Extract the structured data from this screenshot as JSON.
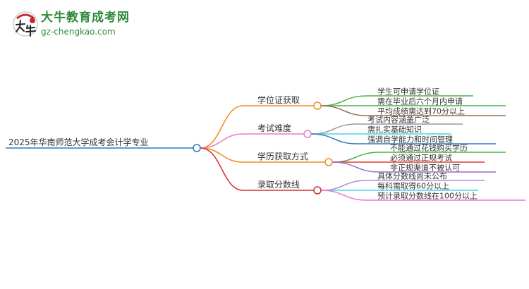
{
  "logo": {
    "brand": "大牛教育成考网",
    "site": "gz-chengkao.com",
    "mark": "大牛"
  },
  "root": {
    "label": "2025年华南师范大学成考会计学专业",
    "color": "#2b7bbf"
  },
  "branches": [
    {
      "label": "学位证获取",
      "color": "#f28a22",
      "children": [
        {
          "label": "学生可申请学位证",
          "color": "#4caf50"
        },
        {
          "label": "需在毕业后六个月内申请",
          "color": "#4caf50"
        },
        {
          "label": "平均成绩需达到70分以上",
          "color": "#9c6b5a"
        }
      ]
    },
    {
      "label": "考试难度",
      "color": "#e87bc8",
      "children": [
        {
          "label": "考试内容涵盖广泛",
          "color": "#999999"
        },
        {
          "label": "需扎实基础知识",
          "color": "#4dd0e1"
        },
        {
          "label": "强调自学能力和时间管理",
          "color": "#2b7bbf"
        }
      ]
    },
    {
      "label": "学历获取方式",
      "color": "#f28a22",
      "children": [
        {
          "label": "不能通过花钱购买学历",
          "color": "#4caf50"
        },
        {
          "label": "必须通过正规考试",
          "color": "#e53935"
        },
        {
          "label": "非正规渠道不被认可",
          "color": "#9c6bd0"
        }
      ]
    },
    {
      "label": "录取分数线",
      "color": "#d32f2f",
      "children": [
        {
          "label": "具体分数线尚未公布",
          "color": "#b48ad8"
        },
        {
          "label": "每科需取得60分以上",
          "color": "#4dd0e1"
        },
        {
          "label": "预计录取分数线在100分以上",
          "color": "#e87bc8"
        }
      ]
    }
  ]
}
